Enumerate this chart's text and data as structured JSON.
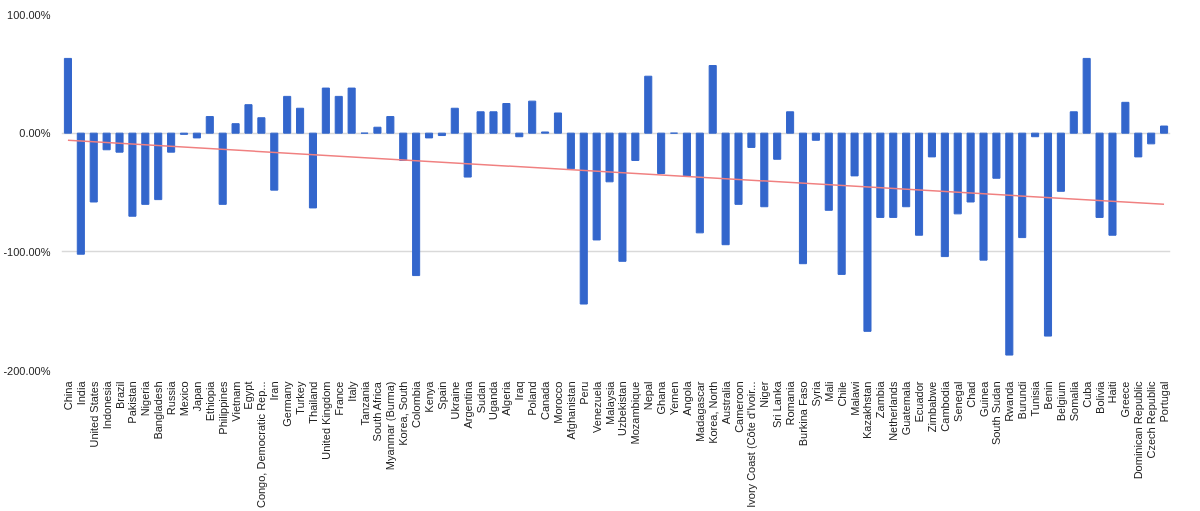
{
  "chart_data": {
    "type": "bar",
    "categories": [
      "China",
      "India",
      "United States",
      "Indonesia",
      "Brazil",
      "Pakistan",
      "Nigeria",
      "Bangladesh",
      "Russia",
      "Mexico",
      "Japan",
      "Ethiopia",
      "Philippines",
      "Vietnam",
      "Egypt",
      "Congo, Democratic Rep...",
      "Iran",
      "Germany",
      "Turkey",
      "Thailand",
      "United Kingdom",
      "France",
      "Italy",
      "Tanzania",
      "South Africa",
      "Myanmar (Burma)",
      "Korea, South",
      "Colombia",
      "Kenya",
      "Spain",
      "Ukraine",
      "Argentina",
      "Sudan",
      "Uganda",
      "Algeria",
      "Iraq",
      "Poland",
      "Canada",
      "Morocco",
      "Afghanistan",
      "Peru",
      "Venezuela",
      "Malaysia",
      "Uzbekistan",
      "Mozambique",
      "Nepal",
      "Ghana",
      "Yemen",
      "Angola",
      "Madagascar",
      "Korea, North",
      "Australia",
      "Cameroon",
      "Ivory Coast (Côte d'Ivoir...",
      "Niger",
      "Sri Lanka",
      "Romania",
      "Burkina Faso",
      "Syria",
      "Mali",
      "Chile",
      "Malawi",
      "Kazakhstan",
      "Zambia",
      "Netherlands",
      "Guatemala",
      "Ecuador",
      "Zimbabwe",
      "Cambodia",
      "Senegal",
      "Chad",
      "Guinea",
      "South Sudan",
      "Rwanda",
      "Burundi",
      "Tunisia",
      "Benin",
      "Belgium",
      "Somalia",
      "Cuba",
      "Bolivia",
      "Haiti",
      "Greece",
      "Dominican Republic",
      "Czech Republic",
      "Portugal"
    ],
    "series": [
      {
        "color": "#3366cc",
        "values": [
          63,
          -102,
          -58,
          -14,
          -16,
          -70,
          -60,
          -56,
          -16,
          -1,
          -4,
          14,
          -60,
          8,
          24,
          13,
          -48,
          31,
          21,
          -63,
          38,
          31,
          38,
          0,
          5,
          14,
          -23,
          -120,
          -4,
          -2,
          21,
          -37,
          18,
          18,
          25,
          -3,
          27,
          1,
          17,
          -30,
          -144,
          -90,
          -41,
          -108,
          -23,
          48,
          -34,
          0,
          -36,
          -84,
          57,
          -94,
          -60,
          -12,
          -62,
          -22,
          18,
          -110,
          -6,
          -65,
          -119,
          -36,
          -167,
          -71,
          -71,
          -62,
          -86,
          -20,
          -104,
          -68,
          -58,
          -107,
          -38,
          -187,
          -88,
          -3,
          -171,
          -49,
          18,
          63,
          -71,
          -86,
          26,
          -20,
          -9,
          6
        ]
      },
      {
        "type": "line",
        "color": "#f08080",
        "values": [
          -6,
          null,
          null,
          null,
          null,
          null,
          null,
          null,
          null,
          null,
          null,
          null,
          null,
          null,
          null,
          null,
          null,
          null,
          null,
          null,
          null,
          null,
          null,
          null,
          null,
          null,
          null,
          null,
          null,
          null,
          null,
          null,
          null,
          null,
          null,
          null,
          null,
          null,
          null,
          null,
          null,
          null,
          null,
          null,
          null,
          null,
          null,
          null,
          null,
          null,
          null,
          null,
          null,
          null,
          null,
          null,
          null,
          null,
          null,
          null,
          null,
          null,
          null,
          null,
          null,
          null,
          null,
          null,
          null,
          null,
          null,
          null,
          null,
          null,
          null,
          null,
          null,
          null,
          null,
          null,
          null,
          null,
          null,
          null,
          null,
          -60
        ]
      }
    ],
    "ylim": [
      -200,
      100
    ],
    "yticks": [
      {
        "value": -200,
        "label": "-200.00%"
      },
      {
        "value": -100,
        "label": "-100.00%"
      },
      {
        "value": 0,
        "label": "0.00%"
      },
      {
        "value": 100,
        "label": "100.00%"
      }
    ],
    "grid": "y"
  }
}
